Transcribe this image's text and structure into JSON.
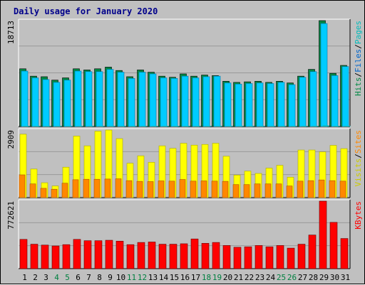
{
  "title": "Daily usage for January 2020",
  "colors": {
    "hits": "#00ccff",
    "hits_edge": "#0077aa",
    "files": "#008844",
    "pages": "#00bbbb",
    "visits": "#ffff00",
    "visits_edge": "#aaaa00",
    "sites": "#ff8800",
    "kbytes": "#ff0000",
    "weekend": "#008040",
    "weekday": "#000000",
    "background": "#c0c0c0"
  },
  "chart_data": [
    {
      "type": "bar",
      "name": "hits-files-pages",
      "categories": [
        "1",
        "2",
        "3",
        "4",
        "5",
        "6",
        "7",
        "8",
        "9",
        "10",
        "11",
        "12",
        "13",
        "14",
        "15",
        "16",
        "17",
        "18",
        "19",
        "20",
        "21",
        "22",
        "23",
        "24",
        "25",
        "26",
        "27",
        "28",
        "29",
        "30",
        "31"
      ],
      "max_label": "18713",
      "ylim": [
        0,
        18713
      ],
      "legend": [
        {
          "label": "Pages",
          "color": "#00bbbb"
        },
        {
          "label": "/",
          "color": "#000000"
        },
        {
          "label": "Files",
          "color": "#0066cc"
        },
        {
          "label": "/",
          "color": "#000000"
        },
        {
          "label": "Hits",
          "color": "#008844"
        }
      ],
      "series": [
        {
          "name": "Hits",
          "values": [
            10200,
            8900,
            8800,
            8200,
            8600,
            10200,
            10000,
            10200,
            10500,
            9900,
            8800,
            10000,
            9600,
            8900,
            8700,
            9300,
            8900,
            9100,
            9000,
            8000,
            7800,
            7900,
            8000,
            7800,
            8000,
            7700,
            8900,
            10100,
            18713,
            9400,
            10800
          ]
        },
        {
          "name": "Files",
          "values": [
            9800,
            8600,
            8300,
            7800,
            8200,
            9800,
            9700,
            9700,
            10100,
            9600,
            8500,
            9600,
            9300,
            8600,
            8500,
            8900,
            8600,
            8800,
            8900,
            7700,
            7500,
            7600,
            7700,
            7600,
            7800,
            7400,
            8700,
            9700,
            18200,
            9000,
            10600
          ]
        },
        {
          "name": "Pages",
          "values": [
            120,
            100,
            100,
            80,
            90,
            110,
            100,
            110,
            110,
            100,
            90,
            110,
            100,
            90,
            90,
            100,
            90,
            100,
            100,
            80,
            80,
            80,
            80,
            80,
            80,
            70,
            90,
            110,
            200,
            100,
            110
          ]
        }
      ]
    },
    {
      "type": "bar",
      "name": "visits-sites",
      "categories": [
        "1",
        "2",
        "3",
        "4",
        "5",
        "6",
        "7",
        "8",
        "9",
        "10",
        "11",
        "12",
        "13",
        "14",
        "15",
        "16",
        "17",
        "18",
        "19",
        "20",
        "21",
        "22",
        "23",
        "24",
        "25",
        "26",
        "27",
        "28",
        "29",
        "30",
        "31"
      ],
      "max_label": "2909",
      "ylim": [
        0,
        2909
      ],
      "legend": [
        {
          "label": "Sites",
          "color": "#ff8800"
        },
        {
          "label": "/",
          "color": "#000000"
        },
        {
          "label": "Visits",
          "color": "#cccc00"
        }
      ],
      "series": [
        {
          "name": "Visits",
          "values": [
            2730,
            1230,
            640,
            500,
            1310,
            2650,
            2230,
            2860,
            2909,
            2540,
            1480,
            1800,
            1520,
            2230,
            2120,
            2340,
            2260,
            2290,
            2340,
            1780,
            970,
            1140,
            1040,
            1270,
            1390,
            880,
            2050,
            2050,
            1970,
            2250,
            2110
          ]
        },
        {
          "name": "Sites",
          "values": [
            980,
            590,
            400,
            360,
            620,
            770,
            790,
            790,
            800,
            810,
            730,
            700,
            690,
            720,
            710,
            780,
            710,
            720,
            710,
            700,
            560,
            560,
            590,
            590,
            590,
            500,
            710,
            730,
            760,
            730,
            710
          ]
        }
      ]
    },
    {
      "type": "bar",
      "name": "kbytes",
      "categories": [
        "1",
        "2",
        "3",
        "4",
        "5",
        "6",
        "7",
        "8",
        "9",
        "10",
        "11",
        "12",
        "13",
        "14",
        "15",
        "16",
        "17",
        "18",
        "19",
        "20",
        "21",
        "22",
        "23",
        "24",
        "25",
        "26",
        "27",
        "28",
        "29",
        "30",
        "31"
      ],
      "max_label": "772621",
      "ylim": [
        0,
        772621
      ],
      "legend": [
        {
          "label": "KBytes",
          "color": "#ff0000"
        }
      ],
      "series": [
        {
          "name": "KBytes",
          "values": [
            335000,
            280000,
            270000,
            260000,
            275000,
            335000,
            320000,
            320000,
            325000,
            315000,
            275000,
            300000,
            305000,
            280000,
            280000,
            285000,
            340000,
            290000,
            300000,
            265000,
            245000,
            250000,
            265000,
            250000,
            265000,
            235000,
            280000,
            385000,
            772621,
            530000,
            345000
          ]
        }
      ]
    }
  ],
  "weekend_days": [
    4,
    5,
    11,
    12,
    18,
    19,
    25,
    26
  ]
}
